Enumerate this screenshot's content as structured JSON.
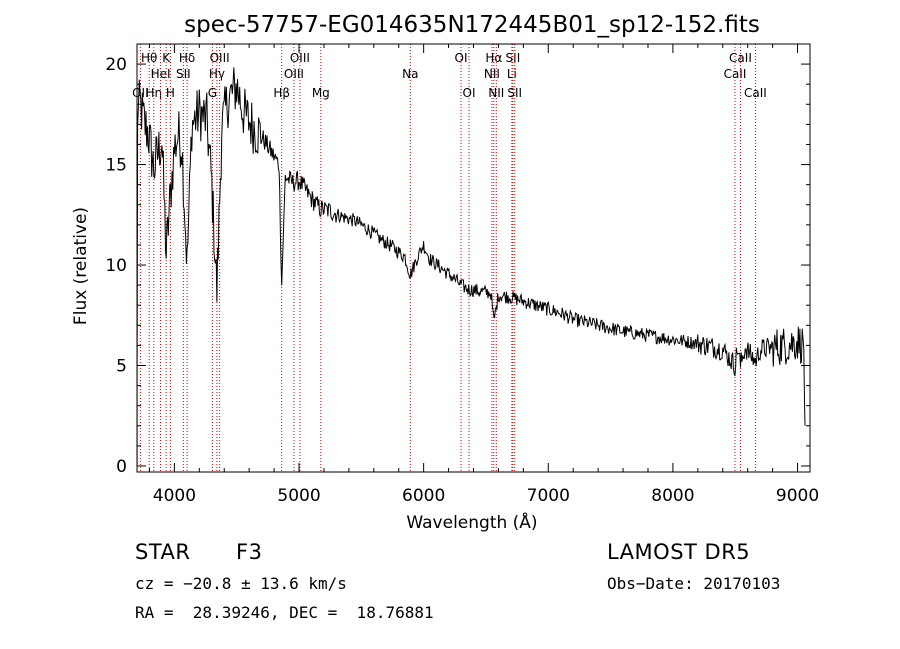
{
  "chart_data": {
    "type": "line",
    "title": "spec-57757-EG014635N172445B01_sp12-152.fits",
    "xlabel": "Wavelength (Å)",
    "ylabel": "Flux (relative)",
    "xlim": [
      3700,
      9100
    ],
    "ylim": [
      -0.3,
      21
    ],
    "xticks": [
      4000,
      5000,
      6000,
      7000,
      8000,
      9000
    ],
    "yticks": [
      0,
      5,
      10,
      15,
      20
    ],
    "grid": false,
    "line_color": "#000000",
    "marker_color": "#cc0000",
    "spectrum_anchors": [
      [
        3700,
        1.0
      ],
      [
        3705,
        17.5
      ],
      [
        3725,
        18.0
      ],
      [
        3760,
        17.0
      ],
      [
        3790,
        16.6
      ],
      [
        3835,
        14.8
      ],
      [
        3870,
        15.6
      ],
      [
        3900,
        16.3
      ],
      [
        3934,
        10.5
      ],
      [
        3968,
        13.5
      ],
      [
        4000,
        15.8
      ],
      [
        4030,
        16.5
      ],
      [
        4060,
        16.0
      ],
      [
        4102,
        10.0
      ],
      [
        4140,
        17.0
      ],
      [
        4200,
        17.6
      ],
      [
        4260,
        17.2
      ],
      [
        4300,
        14.0
      ],
      [
        4341,
        8.7
      ],
      [
        4380,
        16.8
      ],
      [
        4430,
        18.2
      ],
      [
        4500,
        18.9
      ],
      [
        4560,
        17.5
      ],
      [
        4620,
        17.0
      ],
      [
        4700,
        16.4
      ],
      [
        4780,
        15.6
      ],
      [
        4840,
        15.0
      ],
      [
        4861,
        9.0
      ],
      [
        4890,
        14.4
      ],
      [
        4950,
        14.1
      ],
      [
        5000,
        14.2
      ],
      [
        5100,
        13.3
      ],
      [
        5170,
        12.8
      ],
      [
        5250,
        12.7
      ],
      [
        5350,
        12.4
      ],
      [
        5450,
        12.2
      ],
      [
        5550,
        11.8
      ],
      [
        5650,
        11.3
      ],
      [
        5750,
        10.9
      ],
      [
        5850,
        10.4
      ],
      [
        5893,
        9.5
      ],
      [
        5950,
        10.4
      ],
      [
        6000,
        11.0
      ],
      [
        6050,
        10.3
      ],
      [
        6150,
        9.8
      ],
      [
        6250,
        9.3
      ],
      [
        6300,
        9.0
      ],
      [
        6350,
        8.8
      ],
      [
        6450,
        8.7
      ],
      [
        6540,
        8.6
      ],
      [
        6563,
        7.2
      ],
      [
        6600,
        8.5
      ],
      [
        6700,
        8.4
      ],
      [
        6800,
        8.2
      ],
      [
        6900,
        8.0
      ],
      [
        7000,
        7.8
      ],
      [
        7100,
        7.6
      ],
      [
        7200,
        7.3
      ],
      [
        7400,
        7.0
      ],
      [
        7600,
        6.7
      ],
      [
        7800,
        6.5
      ],
      [
        8000,
        6.3
      ],
      [
        8200,
        6.1
      ],
      [
        8400,
        5.8
      ],
      [
        8498,
        5.0
      ],
      [
        8520,
        5.9
      ],
      [
        8542,
        5.0
      ],
      [
        8580,
        5.9
      ],
      [
        8662,
        5.2
      ],
      [
        8700,
        5.8
      ],
      [
        8800,
        5.9
      ],
      [
        8900,
        6.0
      ],
      [
        9000,
        6.2
      ],
      [
        9050,
        6.0
      ],
      [
        9060,
        2.0
      ]
    ],
    "lines": [
      {
        "label": "OII",
        "x": 3727,
        "row": 3
      },
      {
        "label": "Hθ",
        "x": 3798,
        "row": 1
      },
      {
        "label": "Hη",
        "x": 3835,
        "row": 3
      },
      {
        "label": "HeI",
        "x": 3889,
        "row": 2
      },
      {
        "label": "K",
        "x": 3934,
        "row": 1
      },
      {
        "label": "H",
        "x": 3968,
        "row": 3
      },
      {
        "label": "SII",
        "x": 4072,
        "row": 2
      },
      {
        "label": "Hδ",
        "x": 4102,
        "row": 1
      },
      {
        "label": "G",
        "x": 4305,
        "row": 3
      },
      {
        "label": "Hγ",
        "x": 4341,
        "row": 2
      },
      {
        "label": "OIII",
        "x": 4363,
        "row": 1
      },
      {
        "label": "Hβ",
        "x": 4861,
        "row": 3
      },
      {
        "label": "OIII",
        "x": 4959,
        "row": 2
      },
      {
        "label": "OIII",
        "x": 5007,
        "row": 1
      },
      {
        "label": "Mg",
        "x": 5175,
        "row": 3
      },
      {
        "label": "Na",
        "x": 5893,
        "row": 2
      },
      {
        "label": "OI",
        "x": 6300,
        "row": 1
      },
      {
        "label": "OI",
        "x": 6364,
        "row": 3
      },
      {
        "label": "NII",
        "x": 6548,
        "row": 2
      },
      {
        "label": "Hα",
        "x": 6563,
        "row": 1
      },
      {
        "label": "NII",
        "x": 6583,
        "row": 3
      },
      {
        "label": "Li",
        "x": 6708,
        "row": 2
      },
      {
        "label": "SII",
        "x": 6716,
        "row": 1
      },
      {
        "label": "SII",
        "x": 6731,
        "row": 3
      },
      {
        "label": "CaII",
        "x": 8498,
        "row": 2
      },
      {
        "label": "CaII",
        "x": 8542,
        "row": 1
      },
      {
        "label": "CaII",
        "x": 8662,
        "row": 3
      }
    ]
  },
  "info": {
    "class": "STAR",
    "subclass": "F3",
    "survey": "LAMOST DR5",
    "cz": "cz = −20.8 ± 13.6 km/s",
    "obs_date": "Obs−Date: 20170103",
    "coords": "RA =  28.39246, DEC =  18.76881"
  }
}
